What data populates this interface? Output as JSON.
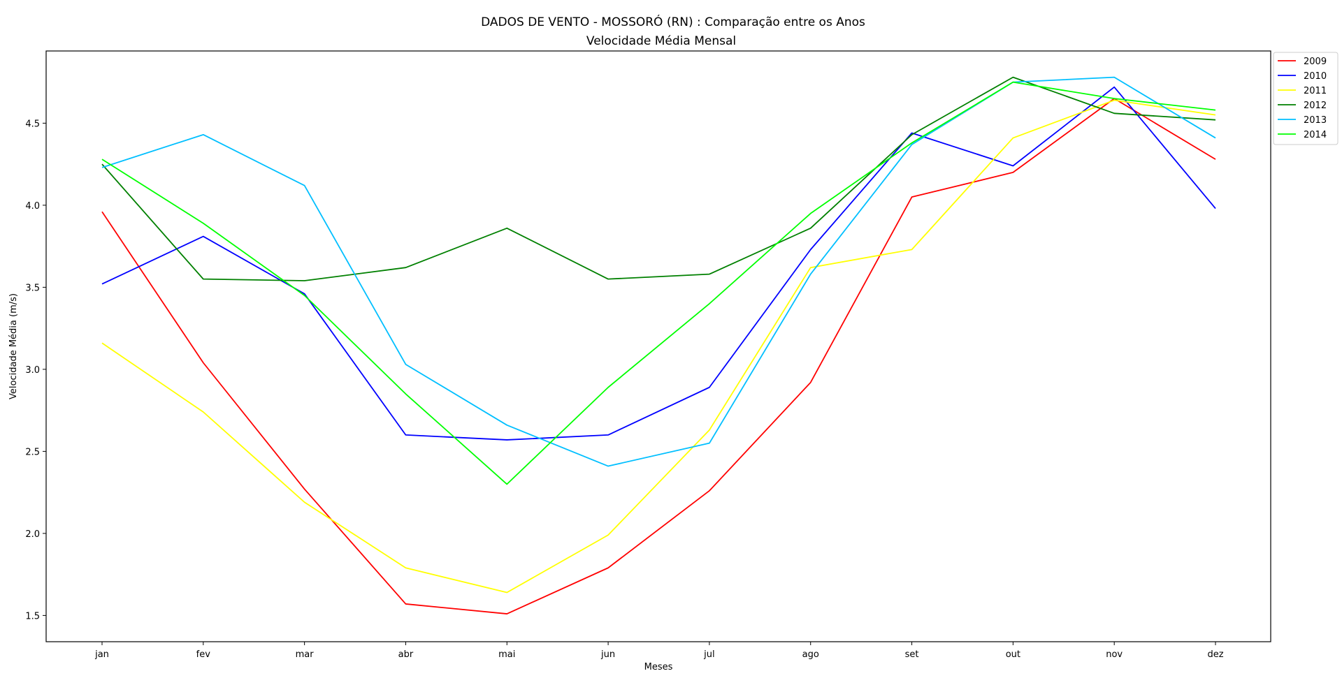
{
  "chart_data": {
    "type": "line",
    "title": "DADOS DE VENTO - MOSSORÓ (RN) : Comparação entre os Anos",
    "subtitle": "Velocidade Média Mensal",
    "xlabel": "Meses",
    "ylabel": "Velocidade Média (m/s)",
    "categories": [
      "jan",
      "fev",
      "mar",
      "abr",
      "mai",
      "jun",
      "jul",
      "ago",
      "set",
      "out",
      "nov",
      "dez"
    ],
    "ylim": [
      1.34,
      4.94
    ],
    "yticks": [
      "1.5",
      "2.0",
      "2.5",
      "3.0",
      "3.5",
      "4.0",
      "4.5"
    ],
    "grid": false,
    "legend_position": "upper-right-outside",
    "series": [
      {
        "name": "2009",
        "color": "#ff0000",
        "values": [
          3.96,
          3.04,
          2.27,
          1.57,
          1.51,
          1.79,
          2.26,
          2.92,
          4.05,
          4.2,
          4.65,
          4.28
        ]
      },
      {
        "name": "2010",
        "color": "#0000ff",
        "values": [
          3.52,
          3.81,
          3.46,
          2.6,
          2.57,
          2.6,
          2.89,
          3.73,
          4.44,
          4.24,
          4.72,
          3.98
        ]
      },
      {
        "name": "2011",
        "color": "#ffff00",
        "values": [
          3.16,
          2.74,
          2.19,
          1.79,
          1.64,
          1.99,
          2.63,
          3.62,
          3.73,
          4.41,
          4.64,
          4.55
        ]
      },
      {
        "name": "2012",
        "color": "#008000",
        "values": [
          4.25,
          3.55,
          3.54,
          3.62,
          3.86,
          3.55,
          3.58,
          3.86,
          4.43,
          4.78,
          4.56,
          4.52
        ]
      },
      {
        "name": "2013",
        "color": "#00bfff",
        "values": [
          4.23,
          4.43,
          4.12,
          3.03,
          2.66,
          2.41,
          2.55,
          3.58,
          4.37,
          4.75,
          4.78,
          4.41
        ]
      },
      {
        "name": "2014",
        "color": "#00ff00",
        "values": [
          4.28,
          3.89,
          3.45,
          2.85,
          2.3,
          2.89,
          3.4,
          3.95,
          4.38,
          4.75,
          4.65,
          4.58
        ]
      }
    ]
  }
}
